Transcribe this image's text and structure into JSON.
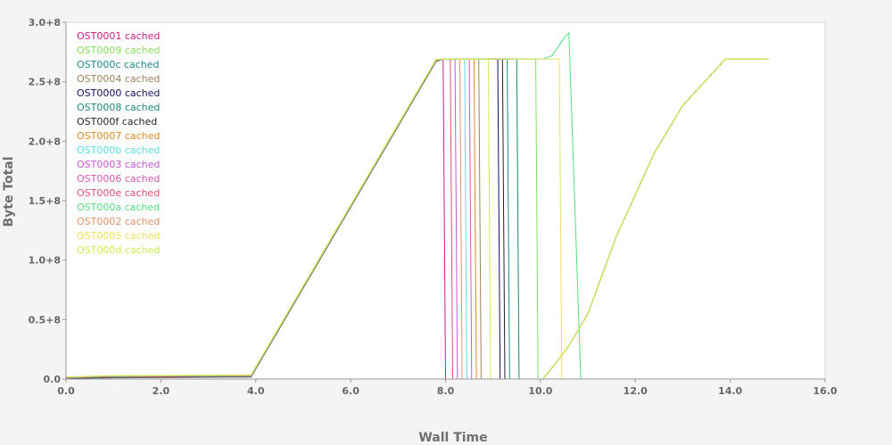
{
  "chart_data": {
    "type": "line",
    "xlabel": "Wall Time",
    "ylabel": "Byte Total",
    "xlim": [
      0,
      16
    ],
    "ylim": [
      0,
      300000000
    ],
    "x_ticks": [
      0,
      2,
      4,
      6,
      8,
      10,
      12,
      14,
      16
    ],
    "x_tick_labels": [
      "0.0",
      "2.0",
      "4.0",
      "6.0",
      "8.0",
      "10.0",
      "12.0",
      "14.0",
      "16.0"
    ],
    "y_ticks": [
      0,
      50000000,
      100000000,
      150000000,
      200000000,
      250000000,
      300000000
    ],
    "y_tick_labels": [
      "0.0",
      "0.5+8",
      "1.0+8",
      "1.5+8",
      "2.0+8",
      "2.5+8",
      "3.0+8"
    ],
    "grid": false,
    "legend_position": "top-left",
    "series": [
      {
        "name": "OST0001 cached",
        "color": "#cc1b87",
        "drop_x": 8.0
      },
      {
        "name": "OST0009 cached",
        "color": "#82e05a",
        "drop_x": 9.95
      },
      {
        "name": "OST000c cached",
        "color": "#1b8a8a",
        "drop_x": 9.35
      },
      {
        "name": "OST0004 cached",
        "color": "#a0825a",
        "drop_x": 8.75
      },
      {
        "name": "OST0000 cached",
        "color": "#101060",
        "drop_x": 9.15
      },
      {
        "name": "OST0008 cached",
        "color": "#1a8a7a",
        "drop_x": 9.55
      },
      {
        "name": "OST000f cached",
        "color": "#2a1a2a",
        "drop_x": 9.25
      },
      {
        "name": "OST0007 cached",
        "color": "#e08a20",
        "drop_x": 8.65
      },
      {
        "name": "OST000b cached",
        "color": "#5ae0e0",
        "drop_x": 8.45
      },
      {
        "name": "OST0003 cached",
        "color": "#c855d8",
        "drop_x": 8.25
      },
      {
        "name": "OST0006 cached",
        "color": "#d855b4",
        "drop_x": 8.55
      },
      {
        "name": "OST000e cached",
        "color": "#e05070",
        "drop_x": 8.15
      },
      {
        "name": "OST000a cached",
        "color": "#50e080",
        "drop_x": 10.85,
        "spike": [
          [
            10.25,
            272000000
          ],
          [
            10.5,
            287000000
          ],
          [
            10.6,
            291000000
          ]
        ]
      },
      {
        "name": "OST0002 cached",
        "color": "#e8906a",
        "drop_x": 8.35
      },
      {
        "name": "OST0005 cached",
        "color": "#f0e060",
        "drop_x": 10.45
      },
      {
        "name": "OST000d cached",
        "color": "#c8f050",
        "drop_x": 8.95
      }
    ],
    "common_path": [
      [
        0,
        1000000
      ],
      [
        1,
        2000000
      ],
      [
        3.9,
        2500000
      ],
      [
        7.8,
        268000000
      ]
    ],
    "plateau_y": 269000000,
    "plateau_end_x": 10.05,
    "recovery_path": [
      [
        10.05,
        0
      ],
      [
        10.3,
        12000000
      ],
      [
        10.6,
        28000000
      ],
      [
        11.0,
        55000000
      ],
      [
        11.6,
        120000000
      ],
      [
        12.4,
        190000000
      ],
      [
        13.0,
        230000000
      ],
      [
        13.9,
        269000000
      ],
      [
        14.8,
        269000000
      ]
    ]
  }
}
